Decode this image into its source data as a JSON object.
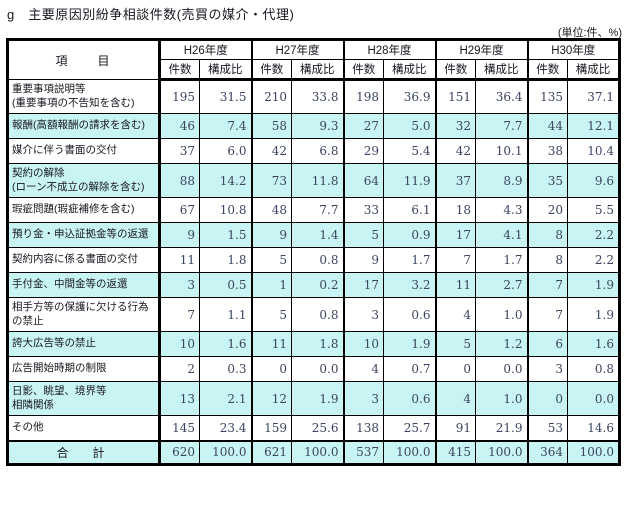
{
  "title": "g　主要原因別紛争相談件数(売買の媒介・代理)",
  "unit_note": "(単位:件、%)",
  "colors": {
    "highlight_row": "#c9f4f4",
    "border": "#000000",
    "number_text": "#3b4560"
  },
  "table": {
    "item_header": "項　　目",
    "year_headers": [
      "H26年度",
      "H27年度",
      "H28年度",
      "H29年度",
      "H30年度"
    ],
    "sub_headers": {
      "count": "件数",
      "ratio": "構成比"
    },
    "rows": [
      {
        "label_lines": [
          "重要事項説明等",
          "(重要事項の不告知を含む)"
        ],
        "highlight": false,
        "values": [
          "195",
          "31.5",
          "210",
          "33.8",
          "198",
          "36.9",
          "151",
          "36.4",
          "135",
          "37.1"
        ]
      },
      {
        "label_lines": [
          "報酬(高額報酬の請求を含む)"
        ],
        "highlight": true,
        "values": [
          "46",
          "7.4",
          "58",
          "9.3",
          "27",
          "5.0",
          "32",
          "7.7",
          "44",
          "12.1"
        ]
      },
      {
        "label_lines": [
          "媒介に伴う書面の交付"
        ],
        "highlight": false,
        "values": [
          "37",
          "6.0",
          "42",
          "6.8",
          "29",
          "5.4",
          "42",
          "10.1",
          "38",
          "10.4"
        ]
      },
      {
        "label_lines": [
          "契約の解除",
          "(ローン不成立の解除を含む)"
        ],
        "highlight": true,
        "values": [
          "88",
          "14.2",
          "73",
          "11.8",
          "64",
          "11.9",
          "37",
          "8.9",
          "35",
          "9.6"
        ]
      },
      {
        "label_lines": [
          "瑕疵問題(瑕疵補修を含む)"
        ],
        "highlight": false,
        "values": [
          "67",
          "10.8",
          "48",
          "7.7",
          "33",
          "6.1",
          "18",
          "4.3",
          "20",
          "5.5"
        ]
      },
      {
        "label_lines": [
          "預り金・申込証拠金等の返還"
        ],
        "highlight": true,
        "values": [
          "9",
          "1.5",
          "9",
          "1.4",
          "5",
          "0.9",
          "17",
          "4.1",
          "8",
          "2.2"
        ]
      },
      {
        "label_lines": [
          "契約内容に係る書面の交付"
        ],
        "highlight": false,
        "values": [
          "11",
          "1.8",
          "5",
          "0.8",
          "9",
          "1.7",
          "7",
          "1.7",
          "8",
          "2.2"
        ]
      },
      {
        "label_lines": [
          "手付金、中間金等の返還"
        ],
        "highlight": true,
        "values": [
          "3",
          "0.5",
          "1",
          "0.2",
          "17",
          "3.2",
          "11",
          "2.7",
          "7",
          "1.9"
        ]
      },
      {
        "label_lines": [
          "相手方等の保護に欠ける行為",
          "の禁止"
        ],
        "highlight": false,
        "values": [
          "7",
          "1.1",
          "5",
          "0.8",
          "3",
          "0.6",
          "4",
          "1.0",
          "7",
          "1.9"
        ]
      },
      {
        "label_lines": [
          "誇大広告等の禁止"
        ],
        "highlight": true,
        "values": [
          "10",
          "1.6",
          "11",
          "1.8",
          "10",
          "1.9",
          "5",
          "1.2",
          "6",
          "1.6"
        ]
      },
      {
        "label_lines": [
          "広告開始時期の制限"
        ],
        "highlight": false,
        "values": [
          "2",
          "0.3",
          "0",
          "0.0",
          "4",
          "0.7",
          "0",
          "0.0",
          "3",
          "0.8"
        ]
      },
      {
        "label_lines": [
          "日影、眺望、境界等",
          "相隣関係"
        ],
        "highlight": true,
        "values": [
          "13",
          "2.1",
          "12",
          "1.9",
          "3",
          "0.6",
          "4",
          "1.0",
          "0",
          "0.0"
        ]
      },
      {
        "label_lines": [
          "その他"
        ],
        "highlight": false,
        "values": [
          "145",
          "23.4",
          "159",
          "25.6",
          "138",
          "25.7",
          "91",
          "21.9",
          "53",
          "14.6"
        ]
      }
    ],
    "total_row": {
      "label": "合　計",
      "values": [
        "620",
        "100.0",
        "621",
        "100.0",
        "537",
        "100.0",
        "415",
        "100.0",
        "364",
        "100.0"
      ]
    }
  }
}
